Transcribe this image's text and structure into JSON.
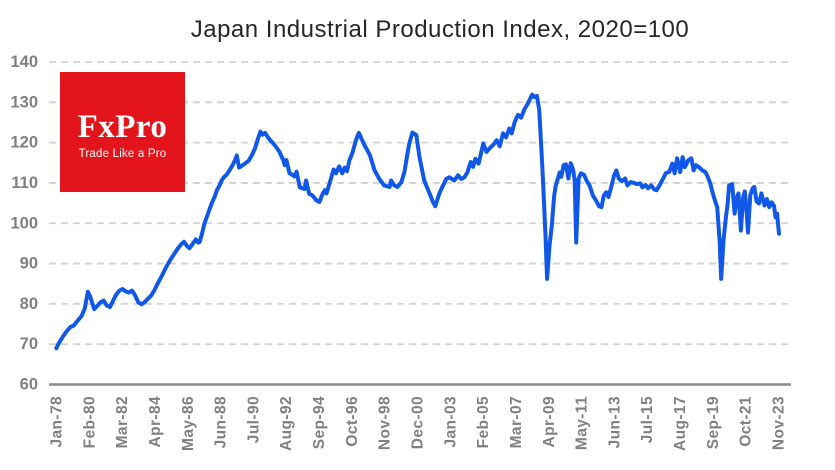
{
  "chart": {
    "title": "Japan Industrial Production Index, 2020=100"
  },
  "logo": {
    "brand": "FxPro",
    "tagline": "Trade Like a Pro"
  },
  "colors": {
    "line": "#1157e8",
    "grid": "#d2d2d2",
    "axis": "#8c8c8c",
    "tick_labels": "#808080",
    "title": "#262626",
    "logo_bg": "#e4141c",
    "background": "#ffffff"
  },
  "chart_data": {
    "type": "line",
    "title": "Japan Industrial Production Index, 2020=100",
    "xlabel": "",
    "ylabel": "",
    "ylim": [
      60,
      140
    ],
    "y_ticks": [
      140,
      130,
      120,
      110,
      100,
      90,
      80,
      70,
      60
    ],
    "x_tick_labels": [
      "Jan-78",
      "Feb-80",
      "Mar-82",
      "Apr-84",
      "May-86",
      "Jun-88",
      "Jul-90",
      "Aug-92",
      "Sep-94",
      "Oct-96",
      "Nov-98",
      "Dec-00",
      "Jan-03",
      "Feb-05",
      "Mar-07",
      "Apr-09",
      "May-11",
      "Jun-13",
      "Jul-15",
      "Aug-17",
      "Sep-19",
      "Oct-21",
      "Nov-23"
    ],
    "xlim_years": [
      1978.04,
      2023.87
    ],
    "grid": "horizontal-dashed",
    "legend": "none",
    "series": [
      {
        "name": "Japan Industrial Production Index (2020=100)",
        "points": [
          [
            1978.0,
            69.0
          ],
          [
            1978.15,
            70.2
          ],
          [
            1978.4,
            71.8
          ],
          [
            1978.65,
            73.2
          ],
          [
            1978.9,
            74.3
          ],
          [
            1979.1,
            74.6
          ],
          [
            1979.35,
            75.8
          ],
          [
            1979.6,
            77.0
          ],
          [
            1979.8,
            78.8
          ],
          [
            1980.0,
            83.0
          ],
          [
            1980.15,
            81.8
          ],
          [
            1980.4,
            78.7
          ],
          [
            1980.6,
            79.5
          ],
          [
            1980.8,
            80.4
          ],
          [
            1981.0,
            80.8
          ],
          [
            1981.2,
            79.6
          ],
          [
            1981.4,
            79.2
          ],
          [
            1981.6,
            80.8
          ],
          [
            1981.8,
            82.3
          ],
          [
            1982.0,
            83.3
          ],
          [
            1982.2,
            83.7
          ],
          [
            1982.4,
            83.1
          ],
          [
            1982.6,
            82.8
          ],
          [
            1982.8,
            83.3
          ],
          [
            1983.0,
            82.1
          ],
          [
            1983.2,
            80.4
          ],
          [
            1983.4,
            79.9
          ],
          [
            1983.6,
            80.4
          ],
          [
            1983.8,
            81.2
          ],
          [
            1984.0,
            82.0
          ],
          [
            1984.2,
            83.2
          ],
          [
            1984.45,
            85.2
          ],
          [
            1984.7,
            87.0
          ],
          [
            1984.95,
            89.0
          ],
          [
            1985.2,
            90.7
          ],
          [
            1985.45,
            92.2
          ],
          [
            1985.7,
            93.7
          ],
          [
            1985.95,
            94.9
          ],
          [
            1986.1,
            95.4
          ],
          [
            1986.3,
            94.3
          ],
          [
            1986.45,
            93.8
          ],
          [
            1986.6,
            94.6
          ],
          [
            1986.85,
            96.0
          ],
          [
            1987.0,
            95.2
          ],
          [
            1987.1,
            95.4
          ],
          [
            1987.25,
            97.5
          ],
          [
            1987.4,
            100.0
          ],
          [
            1987.6,
            102.1
          ],
          [
            1987.75,
            103.8
          ],
          [
            1987.9,
            105.3
          ],
          [
            1988.05,
            106.6
          ],
          [
            1988.2,
            108.3
          ],
          [
            1988.35,
            109.3
          ],
          [
            1988.5,
            110.7
          ],
          [
            1988.65,
            111.5
          ],
          [
            1988.8,
            112.0
          ],
          [
            1989.0,
            113.2
          ],
          [
            1989.2,
            114.5
          ],
          [
            1989.35,
            115.8
          ],
          [
            1989.45,
            116.8
          ],
          [
            1989.6,
            113.8
          ],
          [
            1989.8,
            114.3
          ],
          [
            1990.0,
            114.9
          ],
          [
            1990.2,
            115.5
          ],
          [
            1990.4,
            116.8
          ],
          [
            1990.6,
            118.5
          ],
          [
            1990.8,
            121.0
          ],
          [
            1990.95,
            122.7
          ],
          [
            1991.1,
            122.0
          ],
          [
            1991.25,
            122.4
          ],
          [
            1991.45,
            121.2
          ],
          [
            1991.6,
            120.5
          ],
          [
            1991.85,
            119.4
          ],
          [
            1992.15,
            117.8
          ],
          [
            1992.4,
            115.7
          ],
          [
            1992.5,
            114.4
          ],
          [
            1992.6,
            115.7
          ],
          [
            1992.8,
            112.4
          ],
          [
            1993.0,
            112.0
          ],
          [
            1993.1,
            111.6
          ],
          [
            1993.25,
            112.8
          ],
          [
            1993.45,
            108.9
          ],
          [
            1993.75,
            108.5
          ],
          [
            1993.85,
            110.6
          ],
          [
            1994.05,
            107.3
          ],
          [
            1994.25,
            106.9
          ],
          [
            1994.5,
            105.7
          ],
          [
            1994.7,
            105.3
          ],
          [
            1994.9,
            107.3
          ],
          [
            1995.05,
            108.2
          ],
          [
            1995.15,
            107.4
          ],
          [
            1995.35,
            110.0
          ],
          [
            1995.6,
            113.3
          ],
          [
            1995.75,
            112.4
          ],
          [
            1995.95,
            114.1
          ],
          [
            1996.15,
            112.4
          ],
          [
            1996.3,
            113.8
          ],
          [
            1996.45,
            112.9
          ],
          [
            1996.6,
            115.6
          ],
          [
            1996.8,
            117.5
          ],
          [
            1997.0,
            120.4
          ],
          [
            1997.2,
            122.4
          ],
          [
            1997.55,
            119.4
          ],
          [
            1997.9,
            116.9
          ],
          [
            1998.2,
            113.1
          ],
          [
            1998.5,
            111.0
          ],
          [
            1998.8,
            109.4
          ],
          [
            1999.15,
            109.0
          ],
          [
            1999.25,
            110.6
          ],
          [
            1999.45,
            109.4
          ],
          [
            1999.65,
            109.0
          ],
          [
            1999.9,
            110.2
          ],
          [
            2000.1,
            112.8
          ],
          [
            2000.25,
            116.4
          ],
          [
            2000.4,
            119.8
          ],
          [
            2000.6,
            122.5
          ],
          [
            2000.85,
            121.9
          ],
          [
            2001.05,
            116.4
          ],
          [
            2001.35,
            110.6
          ],
          [
            2001.7,
            107.3
          ],
          [
            2001.9,
            105.3
          ],
          [
            2002.05,
            104.2
          ],
          [
            2002.3,
            107.3
          ],
          [
            2002.5,
            109.0
          ],
          [
            2002.75,
            111.0
          ],
          [
            2002.95,
            111.4
          ],
          [
            2003.25,
            110.6
          ],
          [
            2003.5,
            111.9
          ],
          [
            2003.7,
            111.0
          ],
          [
            2003.9,
            111.4
          ],
          [
            2004.1,
            112.7
          ],
          [
            2004.3,
            115.2
          ],
          [
            2004.45,
            114.0
          ],
          [
            2004.6,
            116.0
          ],
          [
            2004.8,
            114.8
          ],
          [
            2005.1,
            119.8
          ],
          [
            2005.3,
            117.7
          ],
          [
            2005.5,
            118.6
          ],
          [
            2005.75,
            119.5
          ],
          [
            2005.95,
            120.6
          ],
          [
            2006.15,
            119.1
          ],
          [
            2006.35,
            122.3
          ],
          [
            2006.55,
            121.3
          ],
          [
            2006.75,
            123.5
          ],
          [
            2006.9,
            122.3
          ],
          [
            2007.1,
            125.2
          ],
          [
            2007.3,
            126.9
          ],
          [
            2007.5,
            126.2
          ],
          [
            2007.7,
            128.2
          ],
          [
            2007.9,
            129.5
          ],
          [
            2008.05,
            130.7
          ],
          [
            2008.2,
            131.9
          ],
          [
            2008.35,
            131.3
          ],
          [
            2008.5,
            131.6
          ],
          [
            2008.65,
            128.2
          ],
          [
            2008.75,
            121.0
          ],
          [
            2008.85,
            113.6
          ],
          [
            2008.95,
            105.2
          ],
          [
            2009.05,
            96.9
          ],
          [
            2009.15,
            86.2
          ],
          [
            2009.3,
            94.4
          ],
          [
            2009.45,
            99.4
          ],
          [
            2009.6,
            106.9
          ],
          [
            2009.7,
            109.4
          ],
          [
            2009.8,
            110.6
          ],
          [
            2009.95,
            112.6
          ],
          [
            2010.05,
            111.5
          ],
          [
            2010.2,
            114.4
          ],
          [
            2010.35,
            114.6
          ],
          [
            2010.5,
            111.1
          ],
          [
            2010.65,
            114.9
          ],
          [
            2010.8,
            113.3
          ],
          [
            2010.9,
            110.6
          ],
          [
            2011.0,
            95.2
          ],
          [
            2011.15,
            111.1
          ],
          [
            2011.3,
            112.4
          ],
          [
            2011.5,
            112.0
          ],
          [
            2011.7,
            110.2
          ],
          [
            2011.85,
            109.4
          ],
          [
            2012.05,
            106.9
          ],
          [
            2012.25,
            105.7
          ],
          [
            2012.45,
            104.2
          ],
          [
            2012.6,
            104.0
          ],
          [
            2012.75,
            106.9
          ],
          [
            2012.9,
            107.7
          ],
          [
            2013.05,
            106.5
          ],
          [
            2013.2,
            108.7
          ],
          [
            2013.4,
            111.9
          ],
          [
            2013.55,
            113.1
          ],
          [
            2013.7,
            111.1
          ],
          [
            2013.9,
            110.4
          ],
          [
            2014.1,
            111.1
          ],
          [
            2014.25,
            109.4
          ],
          [
            2014.45,
            110.2
          ],
          [
            2014.65,
            110.0
          ],
          [
            2014.85,
            109.7
          ],
          [
            2015.05,
            109.9
          ],
          [
            2015.2,
            108.9
          ],
          [
            2015.4,
            109.5
          ],
          [
            2015.55,
            108.7
          ],
          [
            2015.75,
            109.4
          ],
          [
            2015.95,
            108.4
          ],
          [
            2016.1,
            108.2
          ],
          [
            2016.3,
            109.5
          ],
          [
            2016.5,
            111.0
          ],
          [
            2016.7,
            112.5
          ],
          [
            2016.9,
            112.7
          ],
          [
            2017.1,
            114.8
          ],
          [
            2017.25,
            112.4
          ],
          [
            2017.4,
            116.1
          ],
          [
            2017.6,
            112.7
          ],
          [
            2017.75,
            116.4
          ],
          [
            2017.9,
            113.9
          ],
          [
            2018.1,
            115.6
          ],
          [
            2018.3,
            116.1
          ],
          [
            2018.45,
            113.1
          ],
          [
            2018.6,
            114.4
          ],
          [
            2018.8,
            113.9
          ],
          [
            2019.0,
            113.1
          ],
          [
            2019.2,
            112.7
          ],
          [
            2019.35,
            111.5
          ],
          [
            2019.5,
            109.9
          ],
          [
            2019.65,
            107.7
          ],
          [
            2019.8,
            105.7
          ],
          [
            2019.95,
            104.0
          ],
          [
            2020.1,
            95.7
          ],
          [
            2020.2,
            86.2
          ],
          [
            2020.35,
            95.7
          ],
          [
            2020.5,
            101.5
          ],
          [
            2020.6,
            104.5
          ],
          [
            2020.7,
            109.4
          ],
          [
            2020.9,
            109.7
          ],
          [
            2021.05,
            102.4
          ],
          [
            2021.2,
            106.5
          ],
          [
            2021.3,
            107.4
          ],
          [
            2021.45,
            98.2
          ],
          [
            2021.6,
            106.5
          ],
          [
            2021.7,
            107.9
          ],
          [
            2021.8,
            103.6
          ],
          [
            2021.9,
            97.7
          ],
          [
            2022.05,
            107.0
          ],
          [
            2022.2,
            108.7
          ],
          [
            2022.3,
            109.0
          ],
          [
            2022.45,
            105.4
          ],
          [
            2022.6,
            104.9
          ],
          [
            2022.75,
            107.4
          ],
          [
            2022.95,
            104.4
          ],
          [
            2023.1,
            106.0
          ],
          [
            2023.25,
            104.0
          ],
          [
            2023.4,
            105.2
          ],
          [
            2023.55,
            104.3
          ],
          [
            2023.65,
            101.5
          ],
          [
            2023.75,
            102.4
          ],
          [
            2023.82,
            99.4
          ],
          [
            2023.87,
            97.4
          ]
        ]
      }
    ]
  }
}
